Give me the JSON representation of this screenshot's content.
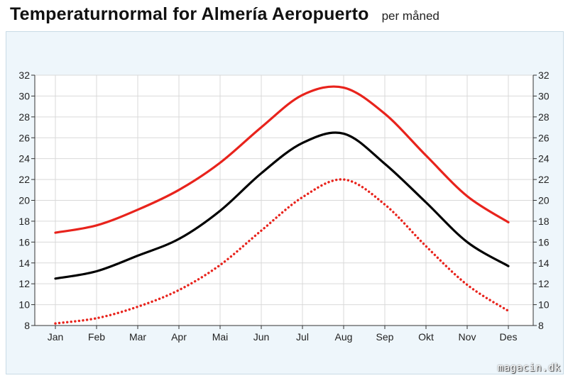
{
  "header": {
    "title": "Temperaturnormal for Almería  Aeropuerto",
    "subtitle": "per måned"
  },
  "watermark": "magacin.dk",
  "chart_data": {
    "type": "line",
    "categories": [
      "Jan",
      "Feb",
      "Mar",
      "Apr",
      "Mai",
      "Jun",
      "Jul",
      "Aug",
      "Sep",
      "Okt",
      "Nov",
      "Des"
    ],
    "yticks": [
      "8",
      "10",
      "12",
      "14",
      "16",
      "18",
      "20",
      "22",
      "24",
      "26",
      "28",
      "30",
      "32"
    ],
    "ylim": [
      8,
      32
    ],
    "grid": true,
    "xlabel": "",
    "ylabel": "",
    "series": [
      {
        "color": "#e8231c",
        "style": "solid",
        "values": [
          16.9,
          17.6,
          19.1,
          21.0,
          23.6,
          27.0,
          30.1,
          30.8,
          28.3,
          24.3,
          20.4,
          17.9
        ]
      },
      {
        "color": "#000000",
        "style": "solid",
        "values": [
          12.5,
          13.2,
          14.7,
          16.3,
          19.0,
          22.6,
          25.5,
          26.4,
          23.5,
          19.8,
          16.0,
          13.7
        ]
      },
      {
        "color": "#e8231c",
        "style": "dotted",
        "values": [
          8.2,
          8.7,
          9.8,
          11.4,
          13.8,
          17.1,
          20.3,
          22.0,
          19.6,
          15.6,
          11.9,
          9.4
        ]
      }
    ]
  }
}
